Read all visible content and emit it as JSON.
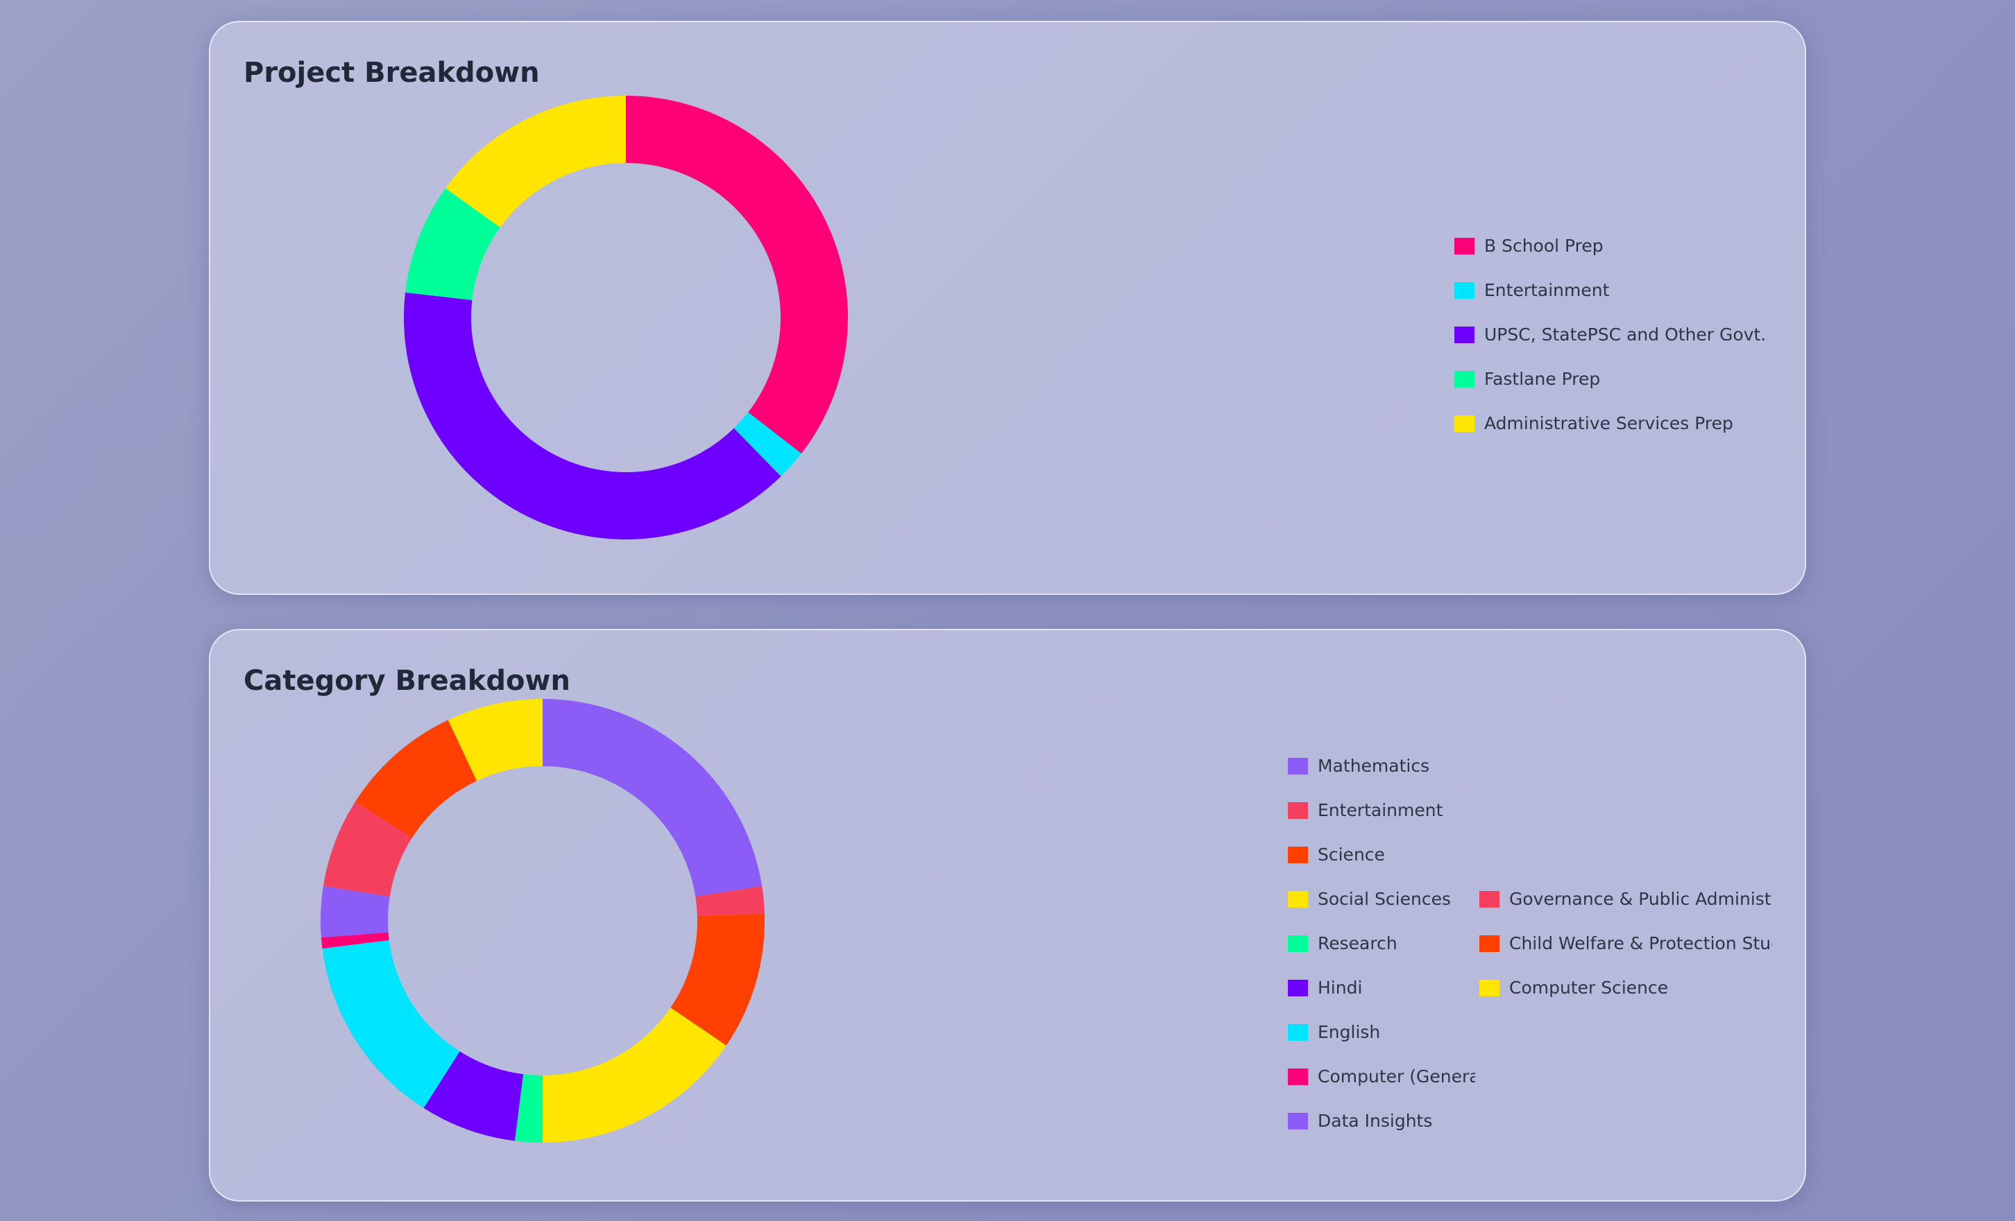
{
  "cards": {
    "project": {
      "title": "Project Breakdown"
    },
    "category": {
      "title": "Category Breakdown"
    }
  },
  "chart_data": [
    {
      "type": "pie",
      "donut": true,
      "title": "Project Breakdown",
      "legend_position": "right",
      "categories": [
        "B School Prep",
        "Entertainment",
        "UPSC, StatePSC and Other Govt. Exams",
        "Fastlane Prep",
        "Administrative Services Prep"
      ],
      "values": [
        35.5,
        2.2,
        39.1,
        8.1,
        15.1
      ],
      "colors": [
        "#ff0077",
        "#00e5ff",
        "#6e00ff",
        "#00ff99",
        "#ffe500"
      ]
    },
    {
      "type": "pie",
      "donut": true,
      "title": "Category Breakdown",
      "legend_position": "right",
      "categories": [
        "Mathematics",
        "Entertainment",
        "Science",
        "Social Sciences",
        "Research",
        "Hindi",
        "English",
        "Computer (General)",
        "Data Insights",
        "Governance & Public Administration",
        "Child Welfare & Protection Study",
        "Computer Science"
      ],
      "values": [
        22.5,
        2.0,
        10.0,
        15.5,
        2.0,
        7.0,
        14.0,
        0.8,
        3.7,
        6.5,
        9.0,
        7.0
      ],
      "colors": [
        "#8b5cf6",
        "#f43f5e",
        "#ff4000",
        "#ffe500",
        "#00ff99",
        "#6e00ff",
        "#00e5ff",
        "#ff0077",
        "#8b5cf6",
        "#f43f5e",
        "#ff4000",
        "#ffe500"
      ]
    }
  ]
}
